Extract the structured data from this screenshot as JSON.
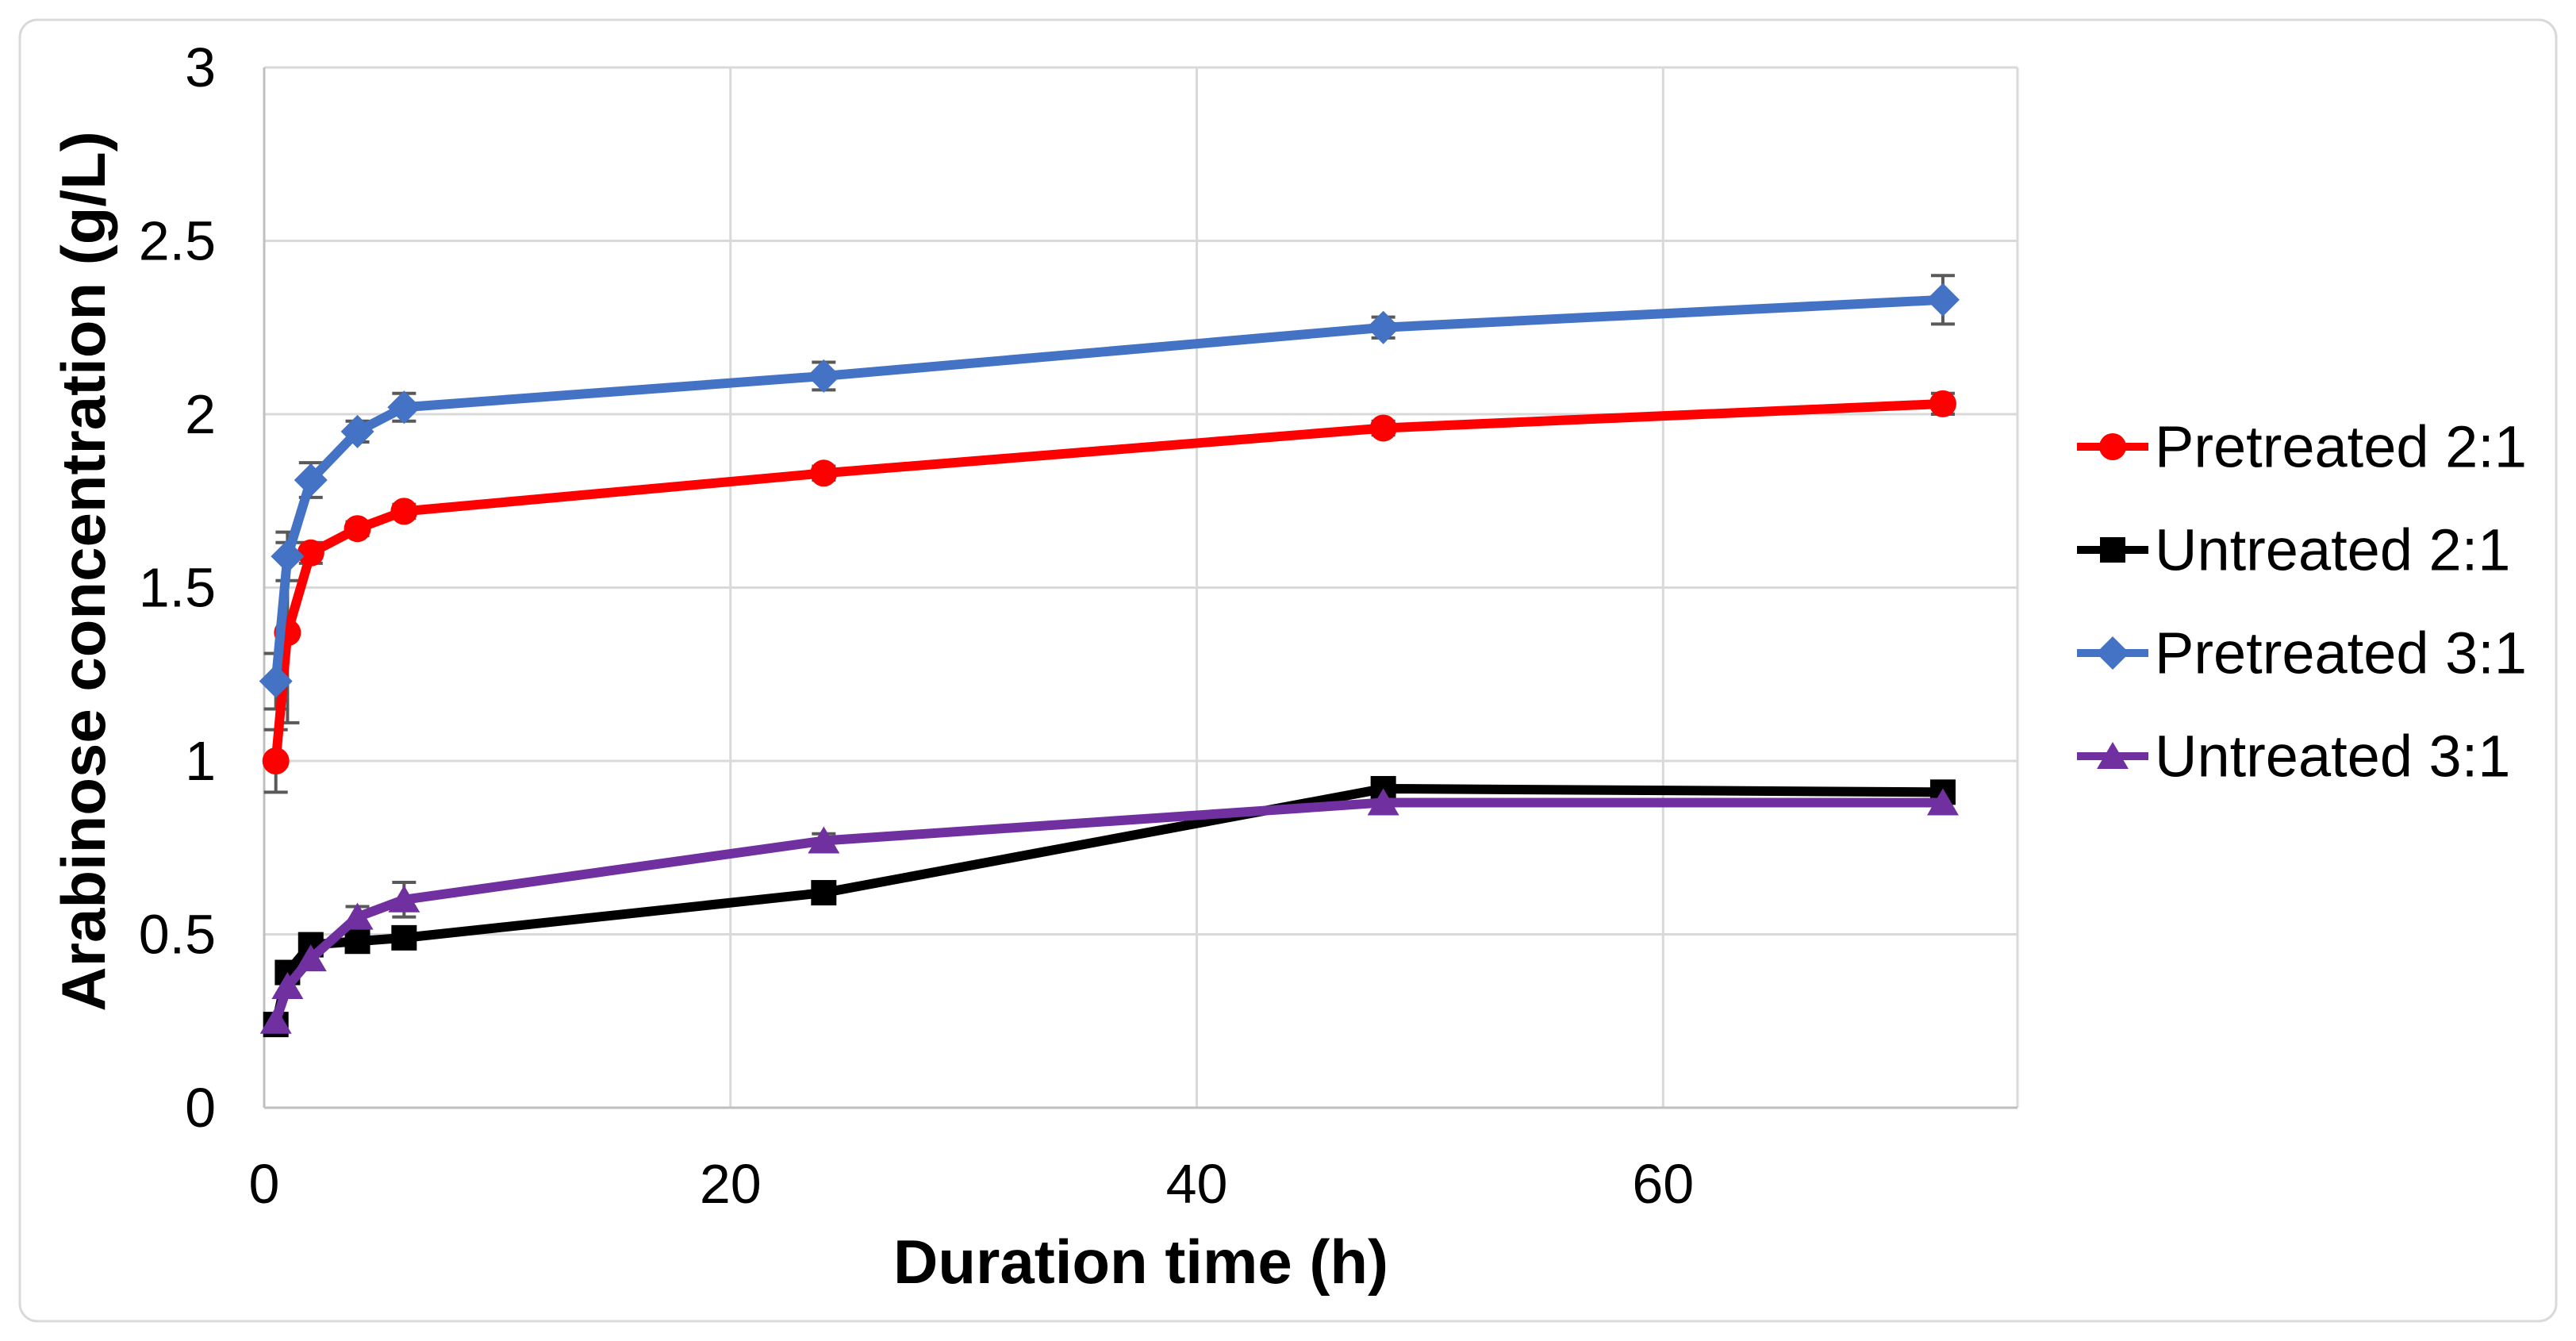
{
  "figure": {
    "background_color": "#FFFFFF",
    "border_color": "#D9D9D9",
    "gridline_color": "#D9D9D9",
    "axis_line_color": "#BFBFBF",
    "error_bar_color": "#595959"
  },
  "chart_data": {
    "type": "line",
    "title": "",
    "xlabel": "Duration time (h)",
    "ylabel": "Arabinose concentration (g/L)",
    "xlim": [
      0,
      75.2
    ],
    "ylim": [
      0,
      3
    ],
    "grid": "on",
    "legend_position": "right",
    "xticks": [
      {
        "v": 0,
        "label": "0"
      },
      {
        "v": 20,
        "label": "20"
      },
      {
        "v": 40,
        "label": "40"
      },
      {
        "v": 60,
        "label": "60"
      }
    ],
    "yticks": [
      {
        "v": 0,
        "label": "0"
      },
      {
        "v": 0.5,
        "label": "0.5"
      },
      {
        "v": 1,
        "label": "1"
      },
      {
        "v": 1.5,
        "label": "1.5"
      },
      {
        "v": 2,
        "label": "2"
      },
      {
        "v": 2.5,
        "label": "2.5"
      },
      {
        "v": 3,
        "label": "3"
      }
    ],
    "x": [
      0.5,
      1,
      2,
      4,
      6,
      24,
      48,
      72
    ],
    "series": [
      {
        "name": "Pretreated 2:1",
        "color": "#FF0000",
        "marker": "circle",
        "values": [
          1.0,
          1.37,
          1.6,
          1.67,
          1.72,
          1.83,
          1.96,
          2.03
        ],
        "errors": [
          0.09,
          0.26,
          0.03,
          0.02,
          0.02,
          0.02,
          0.02,
          0.03
        ]
      },
      {
        "name": "Untreated 2:1",
        "color": "#000000",
        "marker": "square",
        "values": [
          0.24,
          0.39,
          0.47,
          0.48,
          0.49,
          0.62,
          0.92,
          0.91
        ],
        "errors": [
          0.02,
          0.02,
          0.02,
          0.02,
          0.02,
          0.02,
          0.02,
          0.02
        ]
      },
      {
        "name": "Pretreated 3:1",
        "color": "#4472C4",
        "marker": "diamond",
        "values": [
          1.23,
          1.59,
          1.81,
          1.95,
          2.02,
          2.11,
          2.25,
          2.33
        ],
        "errors": [
          0.08,
          0.07,
          0.05,
          0.03,
          0.04,
          0.04,
          0.03,
          0.07
        ]
      },
      {
        "name": "Untreated 3:1",
        "color": "#7030A0",
        "marker": "triangle",
        "values": [
          0.25,
          0.35,
          0.43,
          0.55,
          0.6,
          0.77,
          0.88,
          0.88
        ],
        "errors": [
          0.02,
          0.02,
          0.03,
          0.03,
          0.05,
          0.02,
          0.02,
          0.02
        ]
      }
    ]
  }
}
